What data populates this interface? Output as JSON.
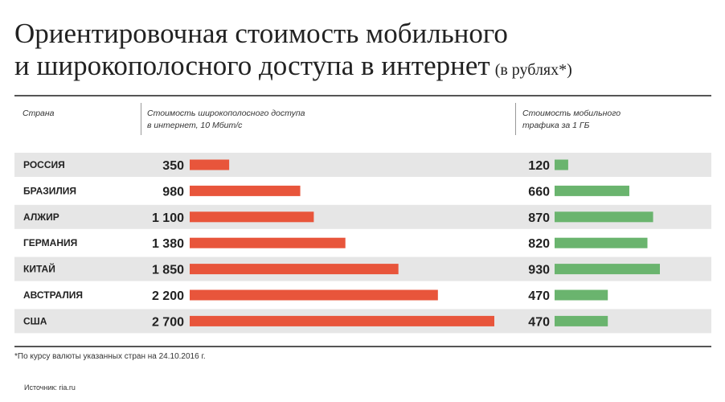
{
  "title": {
    "line1": "Ориентировочная стоимость мобильного",
    "line2": "и широкополосного доступа в интернет",
    "unit": "(в рублях*)"
  },
  "headers": {
    "country": "Страна",
    "broadband_line1": "Стоимость широкополосного доступа",
    "broadband_line2": "в интернет, 10 Мбит/с",
    "mobile_line1": "Стоимость мобильного",
    "mobile_line2": "трафика за 1 ГБ"
  },
  "footnote": "*По курсу валюты указанных стран на 24.10.2016 г.",
  "source": "Источник: ria.ru",
  "colors": {
    "broadband_bar": "#e8553b",
    "mobile_bar": "#6ab46e",
    "row_band": "#e6e6e6"
  },
  "chart_data": {
    "type": "bar",
    "categories": [
      "РОССИЯ",
      "БРАЗИЛИЯ",
      "АЛЖИР",
      "ГЕРМАНИЯ",
      "КИТАЙ",
      "АВСТРАЛИЯ",
      "США"
    ],
    "series": [
      {
        "values": [
          350,
          980,
          1100,
          1380,
          1850,
          2200,
          2700
        ],
        "labels": [
          "350",
          "980",
          "1 100",
          "1 380",
          "1 850",
          "2 200",
          "2 700"
        ]
      },
      {
        "values": [
          120,
          660,
          870,
          820,
          930,
          470,
          470
        ],
        "labels": [
          "120",
          "660",
          "870",
          "820",
          "930",
          "470",
          "470"
        ]
      }
    ],
    "xlabel": "",
    "ylabel": ""
  }
}
